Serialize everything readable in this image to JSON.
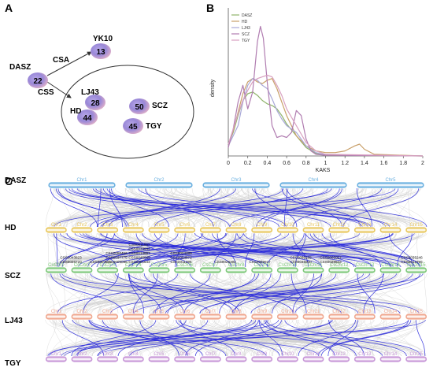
{
  "panels": {
    "a": "A",
    "b": "B",
    "c": "C"
  },
  "network": {
    "nodes": {
      "dasz": {
        "label": "DASZ",
        "count": "22"
      },
      "yk10": {
        "label": "YK10",
        "count": "13"
      },
      "lj43": {
        "label": "LJ43",
        "count": "28"
      },
      "scz": {
        "label": "SCZ",
        "count": "50"
      },
      "hd": {
        "label": "HD",
        "count": "44"
      },
      "tgy": {
        "label": "TGY",
        "count": "45"
      }
    },
    "edges": {
      "csa": "CSA",
      "css": "CSS"
    }
  },
  "chart_data": {
    "type": "line",
    "title": "",
    "xlabel": "KAKS",
    "ylabel": "density",
    "xlim": [
      0,
      2
    ],
    "ylim": [
      0,
      4.4
    ],
    "x_ticks": [
      "0",
      "0.2",
      "0.4",
      "0.6",
      "0.8",
      "1",
      "1.2",
      "1.4",
      "1.6",
      "1.8",
      "2"
    ],
    "legend_position": "top-left",
    "series": [
      {
        "name": "DASZ",
        "color": "#8fb36a",
        "x": [
          0,
          0.05,
          0.1,
          0.15,
          0.2,
          0.25,
          0.3,
          0.35,
          0.4,
          0.45,
          0.5,
          0.55,
          0.6,
          0.7,
          0.8,
          0.9,
          1.0,
          2.0
        ],
        "values": [
          0.35,
          0.7,
          1.2,
          1.65,
          1.85,
          1.9,
          1.8,
          1.65,
          1.55,
          1.5,
          1.4,
          1.2,
          0.95,
          0.6,
          0.25,
          0.08,
          0.02,
          0.0
        ]
      },
      {
        "name": "HD",
        "color": "#c9a06a",
        "x": [
          0,
          0.05,
          0.1,
          0.15,
          0.2,
          0.25,
          0.3,
          0.35,
          0.4,
          0.45,
          0.5,
          0.55,
          0.6,
          0.7,
          0.8,
          0.9,
          1.0,
          1.1,
          1.2,
          1.3,
          1.35,
          1.4,
          1.5,
          2.0
        ],
        "values": [
          0.3,
          0.75,
          1.3,
          1.85,
          2.2,
          2.3,
          2.2,
          2.15,
          2.25,
          2.3,
          2.0,
          1.6,
          1.2,
          0.6,
          0.3,
          0.15,
          0.1,
          0.1,
          0.15,
          0.3,
          0.35,
          0.2,
          0.05,
          0.0
        ]
      },
      {
        "name": "LJ43",
        "color": "#a8a8d8",
        "x": [
          0,
          0.1,
          0.15,
          0.2,
          0.25,
          0.3,
          0.35,
          0.4,
          0.45,
          0.5,
          0.55,
          0.6,
          0.7,
          0.8,
          0.9,
          1.0,
          2.0
        ],
        "values": [
          0.3,
          0.9,
          1.6,
          2.1,
          2.3,
          2.25,
          2.1,
          2.0,
          1.7,
          1.35,
          1.1,
          0.9,
          0.7,
          0.3,
          0.1,
          0.03,
          0.0
        ]
      },
      {
        "name": "SCZ",
        "color": "#b07cb0",
        "x": [
          0,
          0.05,
          0.1,
          0.15,
          0.2,
          0.25,
          0.3,
          0.33,
          0.36,
          0.4,
          0.45,
          0.5,
          0.55,
          0.6,
          0.65,
          0.7,
          0.75,
          0.8,
          0.85,
          0.9,
          1.0,
          2.0
        ],
        "values": [
          0.25,
          0.8,
          1.6,
          2.1,
          1.4,
          1.9,
          3.4,
          3.85,
          3.5,
          2.2,
          0.9,
          0.55,
          0.6,
          0.55,
          0.7,
          1.35,
          1.2,
          0.5,
          0.15,
          0.05,
          0.02,
          0.0
        ]
      },
      {
        "name": "TGY",
        "color": "#d8a0c0",
        "x": [
          0,
          0.05,
          0.1,
          0.15,
          0.2,
          0.25,
          0.3,
          0.35,
          0.4,
          0.45,
          0.5,
          0.55,
          0.6,
          0.7,
          0.8,
          0.9,
          1.0,
          2.0
        ],
        "values": [
          0.35,
          0.8,
          1.25,
          1.65,
          1.95,
          2.2,
          2.3,
          2.35,
          2.4,
          2.35,
          2.1,
          1.8,
          1.4,
          0.9,
          0.4,
          0.15,
          0.05,
          0.0
        ]
      }
    ]
  },
  "synteny": {
    "genomes": [
      {
        "label": "DASZ",
        "color": "#6ab0e0",
        "chromosomes": [
          "Chr1",
          "Chr2",
          "Chr3",
          "Chr4",
          "Chr5"
        ]
      },
      {
        "label": "HD",
        "color": "#e8c860",
        "chromosomes": [
          "Chr1",
          "Chr2",
          "Chr3",
          "Chr4",
          "Chr5",
          "Chr6",
          "Chr7",
          "Chr8",
          "Chr9",
          "Chr10",
          "Chr11",
          "Chr12",
          "Chr13",
          "Chr14",
          "Chr15"
        ]
      },
      {
        "label": "SCZ",
        "color": "#7ec87a",
        "chromosomes": [
          "CsChr1",
          "CsChr2",
          "CsChr3",
          "CsChr4",
          "CsChr5",
          "CsChr6",
          "CsChr7",
          "CsChr8",
          "CsChr9",
          "CsChr10",
          "CsChr11",
          "CsChr12",
          "CsChr13",
          "CsChr14",
          "CsChr15"
        ]
      },
      {
        "label": "LJ43",
        "color": "#f0a890",
        "chromosomes": [
          "Chr1",
          "Chr2",
          "Chr3",
          "Chr4",
          "Chr5",
          "Chr6",
          "Chr7",
          "Chr8",
          "Chr9",
          "Chr10",
          "Chr11",
          "Chr12",
          "Chr13",
          "Chr14",
          "Chr15"
        ]
      },
      {
        "label": "TGY",
        "color": "#c898d8",
        "chromosomes": [
          "Chr1",
          "Chr2",
          "Chr3",
          "Chr4",
          "Chr5",
          "Chr6",
          "Chr7",
          "Chr8",
          "Chr9",
          "Chr10",
          "Chr11",
          "Chr12",
          "Chr13",
          "Chr14",
          "Chr15"
        ]
      }
    ],
    "gene_labels": [
      "CSS0043823",
      "CSS0026720",
      "CSS0000072",
      "CSS0050456",
      "CSS0037775",
      "CSS0009096",
      "CSS0011557",
      "CSS0033932",
      "CSS0014887",
      "CSS0046049",
      "CSS0001543",
      "CSS0024289",
      "CSS0004572",
      "CSS0011299",
      "CSS0028392",
      "CSS0009927",
      "CSS0035165",
      "CSS0045900",
      "CSS0005057",
      "CSS0028943",
      "CSS0035246",
      "CSS0012795"
    ]
  }
}
